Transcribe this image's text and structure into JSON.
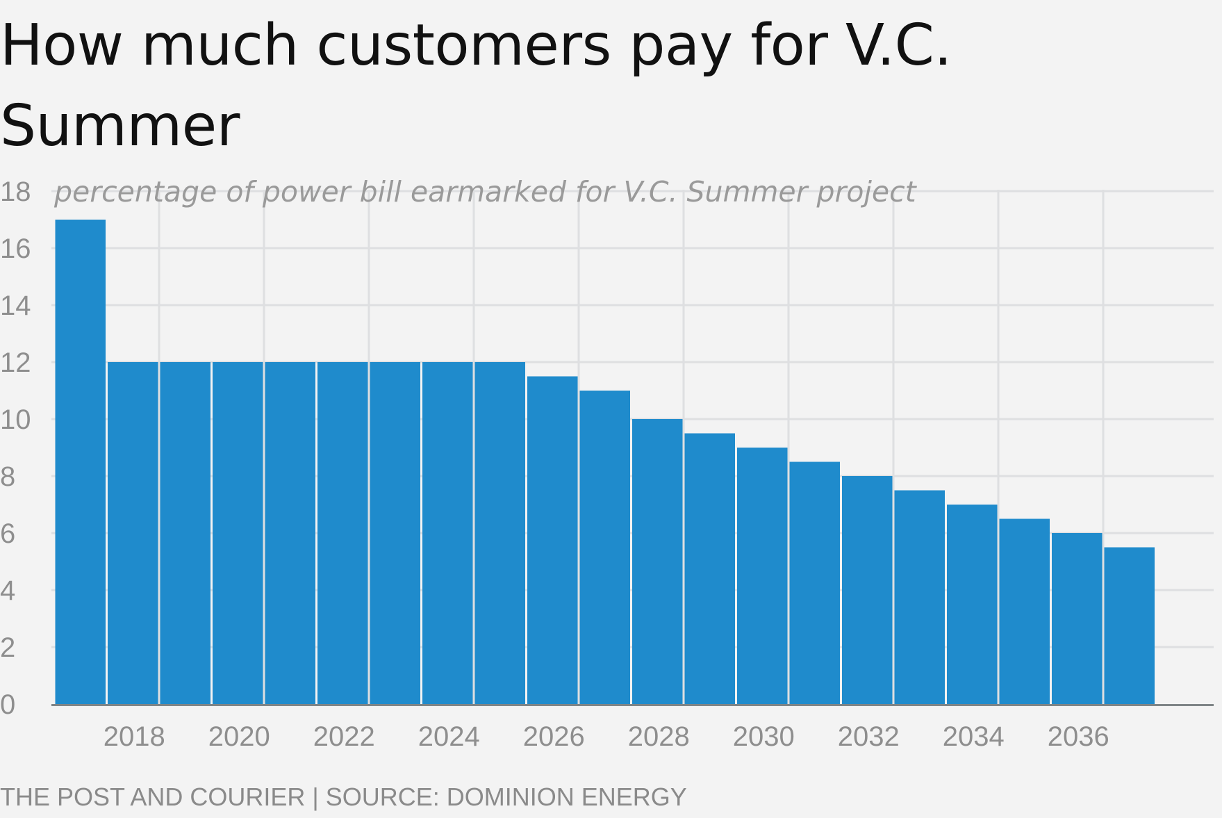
{
  "chart_data": {
    "type": "bar",
    "title": "How much customers pay for V.C. Summer",
    "ylabel": "percentage of power bill earmarked for V.C. Summer project",
    "xlabel": "",
    "ylim": [
      0,
      18
    ],
    "yticks": [
      0,
      2,
      4,
      6,
      8,
      10,
      12,
      14,
      16,
      18
    ],
    "xlim": [
      2016.5,
      2038.5
    ],
    "xticks": [
      2018,
      2020,
      2022,
      2024,
      2026,
      2028,
      2030,
      2032,
      2034,
      2036
    ],
    "grid": true,
    "bar_color": "#1f8bcc",
    "categories": [
      2017,
      2018,
      2019,
      2020,
      2021,
      2022,
      2023,
      2024,
      2025,
      2026,
      2027,
      2028,
      2029,
      2030,
      2031,
      2032,
      2033,
      2034,
      2035,
      2036,
      2037
    ],
    "values": [
      17,
      12,
      12,
      12,
      12,
      12,
      12,
      12,
      12,
      11.5,
      11,
      10,
      9.5,
      9,
      8.5,
      8,
      7.5,
      7,
      6.5,
      6,
      5.5
    ]
  },
  "footer": {
    "source": "THE POST AND COURIER | SOURCE: DOMINION ENERGY"
  }
}
